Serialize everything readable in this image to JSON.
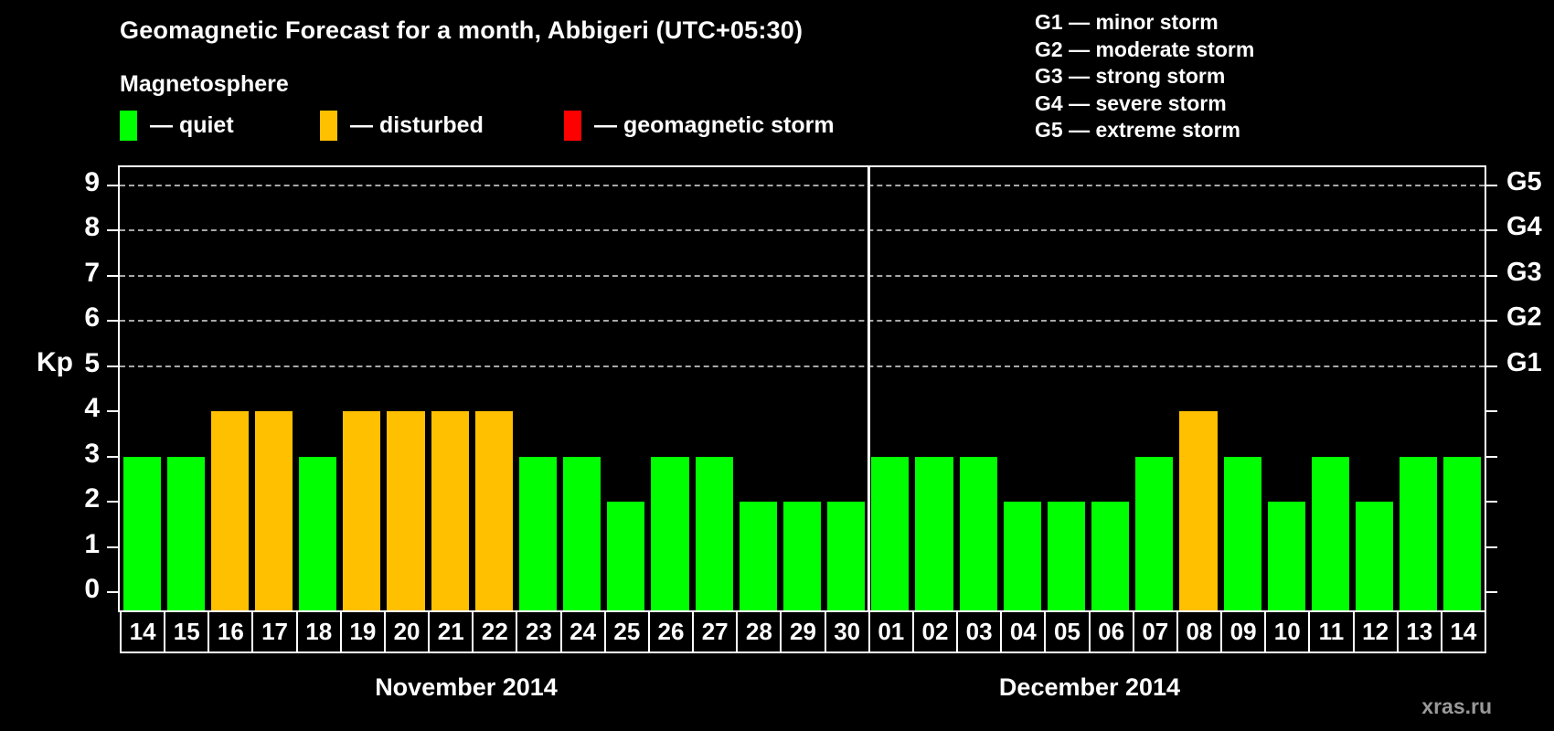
{
  "title": "Geomagnetic Forecast for a month, Abbigeri (UTC+05:30)",
  "legend": {
    "heading": "Magnetosphere",
    "items": [
      {
        "name": "quiet",
        "label": "— quiet",
        "color": "#00ff00"
      },
      {
        "name": "disturbed",
        "label": "— disturbed",
        "color": "#ffc000"
      },
      {
        "name": "storm",
        "label": "— geomagnetic storm",
        "color": "#ff0000"
      }
    ]
  },
  "storm_scale_legend": [
    "G1 — minor storm",
    "G2 — moderate storm",
    "G3 — strong storm",
    "G4 — severe storm",
    "G5 — extreme storm"
  ],
  "watermark": "xras.ru",
  "chart_data": {
    "type": "bar",
    "title": "Geomagnetic Forecast for a month, Abbigeri (UTC+05:30)",
    "ylabel": "Kp",
    "ylim": [
      0,
      9
    ],
    "yticks": [
      0,
      1,
      2,
      3,
      4,
      5,
      6,
      7,
      8,
      9
    ],
    "gridlines_at_kp": [
      5,
      6,
      7,
      8,
      9
    ],
    "right_axis_labels": [
      {
        "kp": 5,
        "label": "G1"
      },
      {
        "kp": 6,
        "label": "G2"
      },
      {
        "kp": 7,
        "label": "G3"
      },
      {
        "kp": 8,
        "label": "G4"
      },
      {
        "kp": 9,
        "label": "G5"
      }
    ],
    "grid": "dashed horizontal lines at storm levels only",
    "legend_position": "top-left",
    "months": [
      {
        "name": "November 2014",
        "categories": [
          "14",
          "15",
          "16",
          "17",
          "18",
          "19",
          "20",
          "21",
          "22",
          "23",
          "24",
          "25",
          "26",
          "27",
          "28",
          "29",
          "30"
        ],
        "values": [
          3,
          3,
          4,
          4,
          3,
          4,
          4,
          4,
          4,
          3,
          3,
          2,
          3,
          3,
          2,
          2,
          2
        ],
        "status": [
          "quiet",
          "quiet",
          "disturbed",
          "disturbed",
          "quiet",
          "disturbed",
          "disturbed",
          "disturbed",
          "disturbed",
          "quiet",
          "quiet",
          "quiet",
          "quiet",
          "quiet",
          "quiet",
          "quiet",
          "quiet"
        ]
      },
      {
        "name": "December 2014",
        "categories": [
          "01",
          "02",
          "03",
          "04",
          "05",
          "06",
          "07",
          "08",
          "09",
          "10",
          "11",
          "12",
          "13",
          "14"
        ],
        "values": [
          3,
          3,
          3,
          2,
          2,
          2,
          3,
          4,
          3,
          2,
          3,
          2,
          3,
          3
        ],
        "status": [
          "quiet",
          "quiet",
          "quiet",
          "quiet",
          "quiet",
          "quiet",
          "quiet",
          "disturbed",
          "quiet",
          "quiet",
          "quiet",
          "quiet",
          "quiet",
          "quiet"
        ]
      }
    ],
    "status_colors": {
      "quiet": "#00ff00",
      "disturbed": "#ffc000",
      "storm": "#ff0000"
    }
  }
}
